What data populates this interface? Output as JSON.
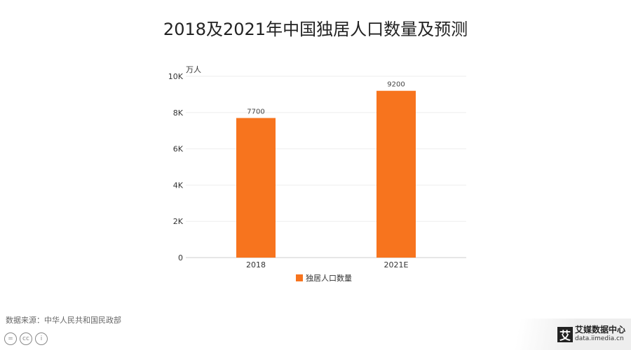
{
  "chart_data": {
    "type": "bar",
    "title": "2018及2021年中国独居人口数量及预测",
    "ylabel": "万人",
    "categories": [
      "2018",
      "2021E"
    ],
    "series": [
      {
        "name": "独居人口数量",
        "values": [
          7700,
          9200
        ]
      }
    ],
    "data_labels": [
      "7700",
      "9200"
    ],
    "yticks": [
      "0",
      "2K",
      "4K",
      "6K",
      "8K",
      "10K"
    ],
    "ylim": [
      0,
      10000
    ],
    "grid": true,
    "legend": "bottom",
    "color": "#F7741E"
  },
  "footer": {
    "source": "数据来源：中华人民共和国民政部",
    "cc_icons": [
      "=",
      "cc",
      "i"
    ],
    "logo_mark": "艾",
    "logo_name": "艾媒数据中心",
    "logo_url": "data.iimedia.cn"
  }
}
